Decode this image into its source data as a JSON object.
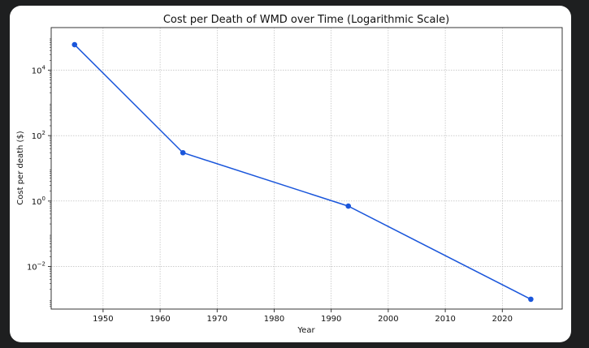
{
  "chart_data": {
    "type": "line",
    "title": "Cost per Death of WMD over Time (Logarithmic Scale)",
    "xlabel": "Year",
    "ylabel": "Cost per death ($)",
    "yscale": "log",
    "xlim": [
      1940.9,
      2030.5
    ],
    "ylim_log10": [
      -3.3,
      5.3
    ],
    "xticks": [
      1950,
      1960,
      1970,
      1980,
      1990,
      2000,
      2010,
      2020
    ],
    "yticks_exp": [
      -2,
      0,
      2,
      4
    ],
    "grid": true,
    "series": [
      {
        "name": "Cost per death",
        "color": "#1a56db",
        "x": [
          1945,
          1964,
          1993,
          2025
        ],
        "y": [
          60000,
          30,
          0.7,
          0.001
        ]
      }
    ]
  }
}
